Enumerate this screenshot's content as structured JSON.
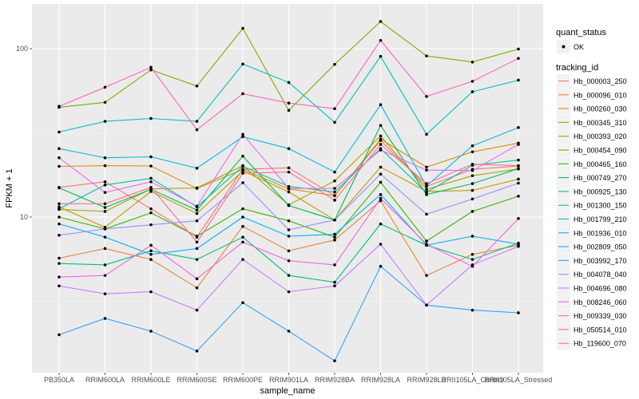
{
  "chart_data": {
    "type": "line",
    "title": "",
    "xlabel": "sample_name",
    "ylabel": "FPKM + 1",
    "y_scale": "log10",
    "ylim": [
      1.2,
      190
    ],
    "y_ticks": [
      10,
      100
    ],
    "y_tick_labels": [
      "10",
      "100"
    ],
    "grid": true,
    "legend_position": "right",
    "categories": [
      "PB350LA",
      "RRIM600LA",
      "RRIM600LE",
      "RRIM600SE",
      "RRIM600PE",
      "RRIM901LA",
      "RRIM928BA",
      "RRIM928LA",
      "RRIM928LB",
      "RRII105LA_Control",
      "RRII105LA_Stressed"
    ],
    "point_legend": {
      "title": "quant_status",
      "entries": [
        {
          "label": "OK",
          "shape": "point",
          "color": "#000000"
        }
      ]
    },
    "color_legend_title": "tracking_id",
    "series": [
      {
        "name": "Hb_000003_250",
        "color": "#F8766D",
        "values": [
          15.0,
          16.2,
          11.2,
          7.6,
          19.2,
          19.6,
          13.4,
          28.5,
          15.2,
          19.2,
          20.1
        ]
      },
      {
        "name": "Hb_000096_010",
        "color": "#EA8331",
        "values": [
          5.7,
          6.5,
          5.6,
          3.8,
          8.8,
          6.3,
          7.3,
          12.5,
          4.5,
          6.0,
          6.8
        ]
      },
      {
        "name": "Hb_000260_030",
        "color": "#D89000",
        "values": [
          20.0,
          20.2,
          20.1,
          14.8,
          19.2,
          14.7,
          13.4,
          29.0,
          19.8,
          24.4,
          27.5
        ]
      },
      {
        "name": "Hb_000345_310",
        "color": "#C09B00",
        "values": [
          11.5,
          8.7,
          14.2,
          10.5,
          18.8,
          14.1,
          9.6,
          19.8,
          14.2,
          14.4,
          16.8
        ]
      },
      {
        "name": "Hb_000393_020",
        "color": "#A3A500",
        "values": [
          11.1,
          10.8,
          14.7,
          14.9,
          20.2,
          11.8,
          16.4,
          30.3,
          14.6,
          17.6,
          19.3
        ]
      },
      {
        "name": "Hb_000454_090",
        "color": "#7CAE00",
        "values": [
          44.9,
          48.0,
          74.8,
          60.0,
          132,
          43.0,
          80.7,
          145,
          90.5,
          83.3,
          99.5
        ]
      },
      {
        "name": "Hb_000465_160",
        "color": "#39B600",
        "values": [
          10.0,
          8.5,
          10.6,
          7.7,
          11.2,
          9.5,
          7.6,
          16.1,
          7.2,
          10.8,
          13.3
        ]
      },
      {
        "name": "Hb_000749_270",
        "color": "#00BB4E",
        "values": [
          14.9,
          11.4,
          14.6,
          11.0,
          23.0,
          11.7,
          9.6,
          35.0,
          13.6,
          15.8,
          19.4
        ]
      },
      {
        "name": "Hb_000925_130",
        "color": "#00BF7D",
        "values": [
          5.3,
          5.2,
          6.3,
          5.6,
          7.6,
          4.5,
          4.1,
          9.1,
          6.8,
          5.6,
          7.0
        ]
      },
      {
        "name": "Hb_001300_150",
        "color": "#00C1A3",
        "values": [
          11.2,
          15.5,
          17.0,
          11.5,
          20.0,
          15.2,
          14.1,
          25.5,
          14.0,
          20.3,
          21.8
        ]
      },
      {
        "name": "Hb_001799_210",
        "color": "#00BFC4",
        "values": [
          32.0,
          37.0,
          38.5,
          37.0,
          81.0,
          63.0,
          36.5,
          90.0,
          31.0,
          55.5,
          65.0
        ]
      },
      {
        "name": "Hb_001936_010",
        "color": "#00BAE0",
        "values": [
          25.5,
          22.5,
          22.8,
          19.5,
          30.0,
          25.5,
          18.5,
          46.5,
          15.3,
          26.5,
          34.0
        ]
      },
      {
        "name": "Hb_002809_050",
        "color": "#00B0F6",
        "values": [
          9.1,
          7.6,
          6.0,
          6.5,
          10.0,
          7.7,
          7.9,
          13.6,
          6.8,
          7.7,
          6.9
        ]
      },
      {
        "name": "Hb_003992_170",
        "color": "#35A2FF",
        "values": [
          2.0,
          2.5,
          2.1,
          1.6,
          3.1,
          2.1,
          1.4,
          5.1,
          3.0,
          2.8,
          2.7
        ]
      },
      {
        "name": "Hb_004078_040",
        "color": "#9590FF",
        "values": [
          7.8,
          8.5,
          9.0,
          9.5,
          16.0,
          8.4,
          9.6,
          18.0,
          10.4,
          12.8,
          15.9
        ]
      },
      {
        "name": "Hb_004696_080",
        "color": "#C77CFF",
        "values": [
          3.9,
          3.5,
          3.6,
          2.8,
          5.6,
          3.6,
          3.9,
          6.9,
          3.0,
          5.2,
          6.7
        ]
      },
      {
        "name": "Hb_008246_060",
        "color": "#E76BF3",
        "values": [
          22.5,
          14.0,
          16.2,
          11.6,
          31.0,
          14.8,
          14.8,
          25.0,
          19.0,
          18.9,
          27.0
        ]
      },
      {
        "name": "Hb_009339_030",
        "color": "#FA62DB",
        "values": [
          4.4,
          4.5,
          6.8,
          4.3,
          7.1,
          5.5,
          5.2,
          12.9,
          6.9,
          5.1,
          9.8
        ]
      },
      {
        "name": "Hb_050514_010",
        "color": "#FF62BC",
        "values": [
          45.5,
          59.0,
          77.5,
          33.0,
          54.0,
          47.5,
          44.0,
          112,
          52.0,
          64.0,
          87.5
        ]
      },
      {
        "name": "Hb_119600_070",
        "color": "#FF6C91",
        "values": [
          12.0,
          12.0,
          15.0,
          7.1,
          18.2,
          18.5,
          12.6,
          27.0,
          15.8,
          20.6,
          20.2
        ]
      }
    ]
  }
}
